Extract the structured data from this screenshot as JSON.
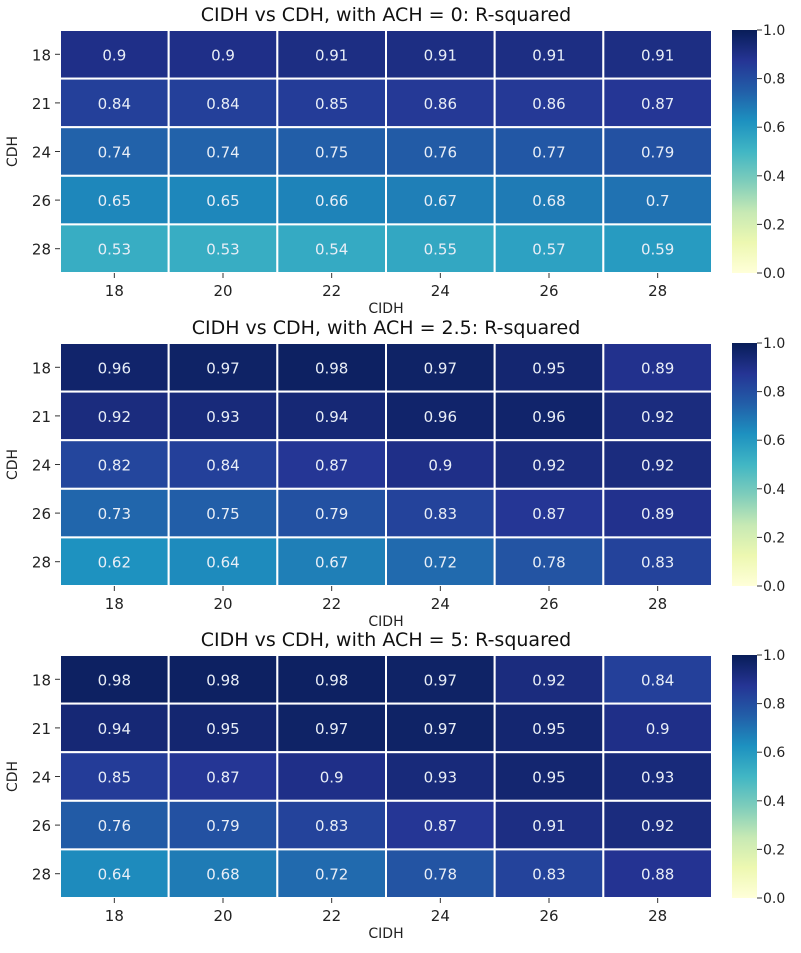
{
  "chart_data": [
    {
      "type": "heatmap",
      "title": "CIDH vs CDH, with ACH = 0: R-squared",
      "xlabel": "CIDH",
      "ylabel": "CDH",
      "x_categories": [
        "18",
        "20",
        "22",
        "24",
        "26",
        "28"
      ],
      "y_categories": [
        "18",
        "21",
        "24",
        "26",
        "28"
      ],
      "values": [
        [
          0.9,
          0.9,
          0.91,
          0.91,
          0.91,
          0.91
        ],
        [
          0.84,
          0.84,
          0.85,
          0.86,
          0.86,
          0.87
        ],
        [
          0.74,
          0.74,
          0.75,
          0.76,
          0.77,
          0.79
        ],
        [
          0.65,
          0.65,
          0.66,
          0.67,
          0.68,
          0.7
        ],
        [
          0.53,
          0.53,
          0.54,
          0.55,
          0.57,
          0.59
        ]
      ],
      "colorbar": {
        "min": 0.0,
        "max": 1.0,
        "ticks": [
          "0.0",
          "0.2",
          "0.4",
          "0.6",
          "0.8",
          "1.0"
        ],
        "colormap": "YlGnBu"
      }
    },
    {
      "type": "heatmap",
      "title": "CIDH vs CDH, with ACH = 2.5: R-squared",
      "xlabel": "CIDH",
      "ylabel": "CDH",
      "x_categories": [
        "18",
        "20",
        "22",
        "24",
        "26",
        "28"
      ],
      "y_categories": [
        "18",
        "21",
        "24",
        "26",
        "28"
      ],
      "values": [
        [
          0.96,
          0.97,
          0.98,
          0.97,
          0.95,
          0.89
        ],
        [
          0.92,
          0.93,
          0.94,
          0.96,
          0.96,
          0.92
        ],
        [
          0.82,
          0.84,
          0.87,
          0.9,
          0.92,
          0.92
        ],
        [
          0.73,
          0.75,
          0.79,
          0.83,
          0.87,
          0.89
        ],
        [
          0.62,
          0.64,
          0.67,
          0.72,
          0.78,
          0.83
        ]
      ],
      "colorbar": {
        "min": 0.0,
        "max": 1.0,
        "ticks": [
          "0.0",
          "0.2",
          "0.4",
          "0.6",
          "0.8",
          "1.0"
        ],
        "colormap": "YlGnBu"
      }
    },
    {
      "type": "heatmap",
      "title": "CIDH vs CDH, with ACH = 5: R-squared",
      "xlabel": "CIDH",
      "ylabel": "CDH",
      "x_categories": [
        "18",
        "20",
        "22",
        "24",
        "26",
        "28"
      ],
      "y_categories": [
        "18",
        "21",
        "24",
        "26",
        "28"
      ],
      "values": [
        [
          0.98,
          0.98,
          0.98,
          0.97,
          0.92,
          0.84
        ],
        [
          0.94,
          0.95,
          0.97,
          0.97,
          0.95,
          0.9
        ],
        [
          0.85,
          0.87,
          0.9,
          0.93,
          0.95,
          0.93
        ],
        [
          0.76,
          0.79,
          0.83,
          0.87,
          0.91,
          0.92
        ],
        [
          0.64,
          0.68,
          0.72,
          0.78,
          0.83,
          0.88
        ]
      ],
      "colorbar": {
        "min": 0.0,
        "max": 1.0,
        "ticks": [
          "0.0",
          "0.2",
          "0.4",
          "0.6",
          "0.8",
          "1.0"
        ],
        "colormap": "YlGnBu"
      }
    }
  ]
}
